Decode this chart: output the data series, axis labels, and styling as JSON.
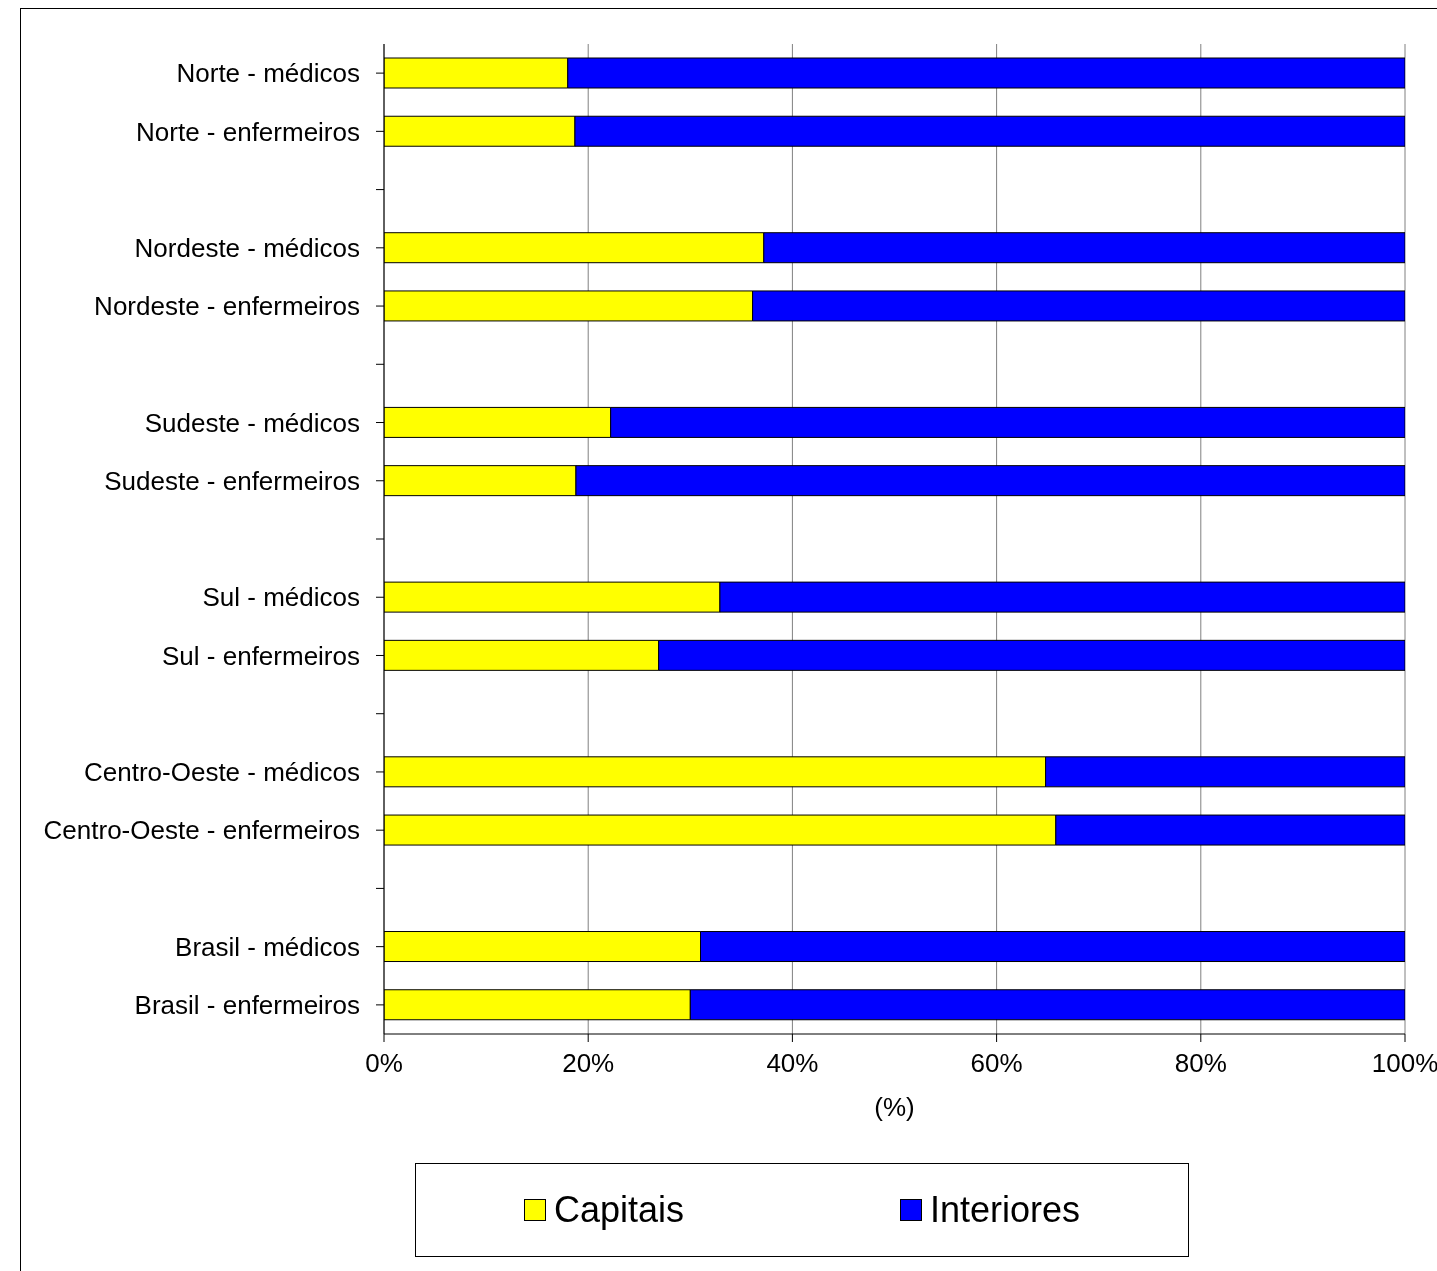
{
  "chart_data": {
    "type": "bar",
    "orientation": "horizontal",
    "stacked": true,
    "xlabel": "(%)",
    "categories": [
      "Norte - médicos",
      "Norte - enfermeiros",
      null,
      "Nordeste - médicos",
      "Nordeste - enfermeiros",
      null,
      "Sudeste - médicos",
      "Sudeste - enfermeiros",
      null,
      "Sul - médicos",
      "Sul - enfermeiros",
      null,
      "Centro-Oeste - médicos",
      "Centro-Oeste - enfermeiros",
      null,
      "Brasil - médicos",
      "Brasil - enfermeiros"
    ],
    "series": [
      {
        "name": "Capitais",
        "color": "#ffff00",
        "values": [
          18,
          18.7,
          null,
          37.2,
          36.1,
          null,
          22.2,
          18.8,
          null,
          32.9,
          26.9,
          null,
          64.8,
          65.8,
          null,
          31,
          30
        ]
      },
      {
        "name": "Interiores",
        "color": "#0000ff",
        "values": [
          82,
          81.3,
          null,
          62.8,
          63.9,
          null,
          77.8,
          81.2,
          null,
          67.1,
          73.1,
          null,
          35.2,
          34.2,
          null,
          69,
          70
        ]
      }
    ],
    "xlim": [
      0,
      100
    ],
    "xticks": [
      {
        "value": 0,
        "label": "0%"
      },
      {
        "value": 20,
        "label": "20%"
      },
      {
        "value": 40,
        "label": "40%"
      },
      {
        "value": 60,
        "label": "60%"
      },
      {
        "value": 80,
        "label": "80%"
      },
      {
        "value": 100,
        "label": "100%"
      }
    ],
    "grid": "x",
    "legend": "bottom"
  }
}
